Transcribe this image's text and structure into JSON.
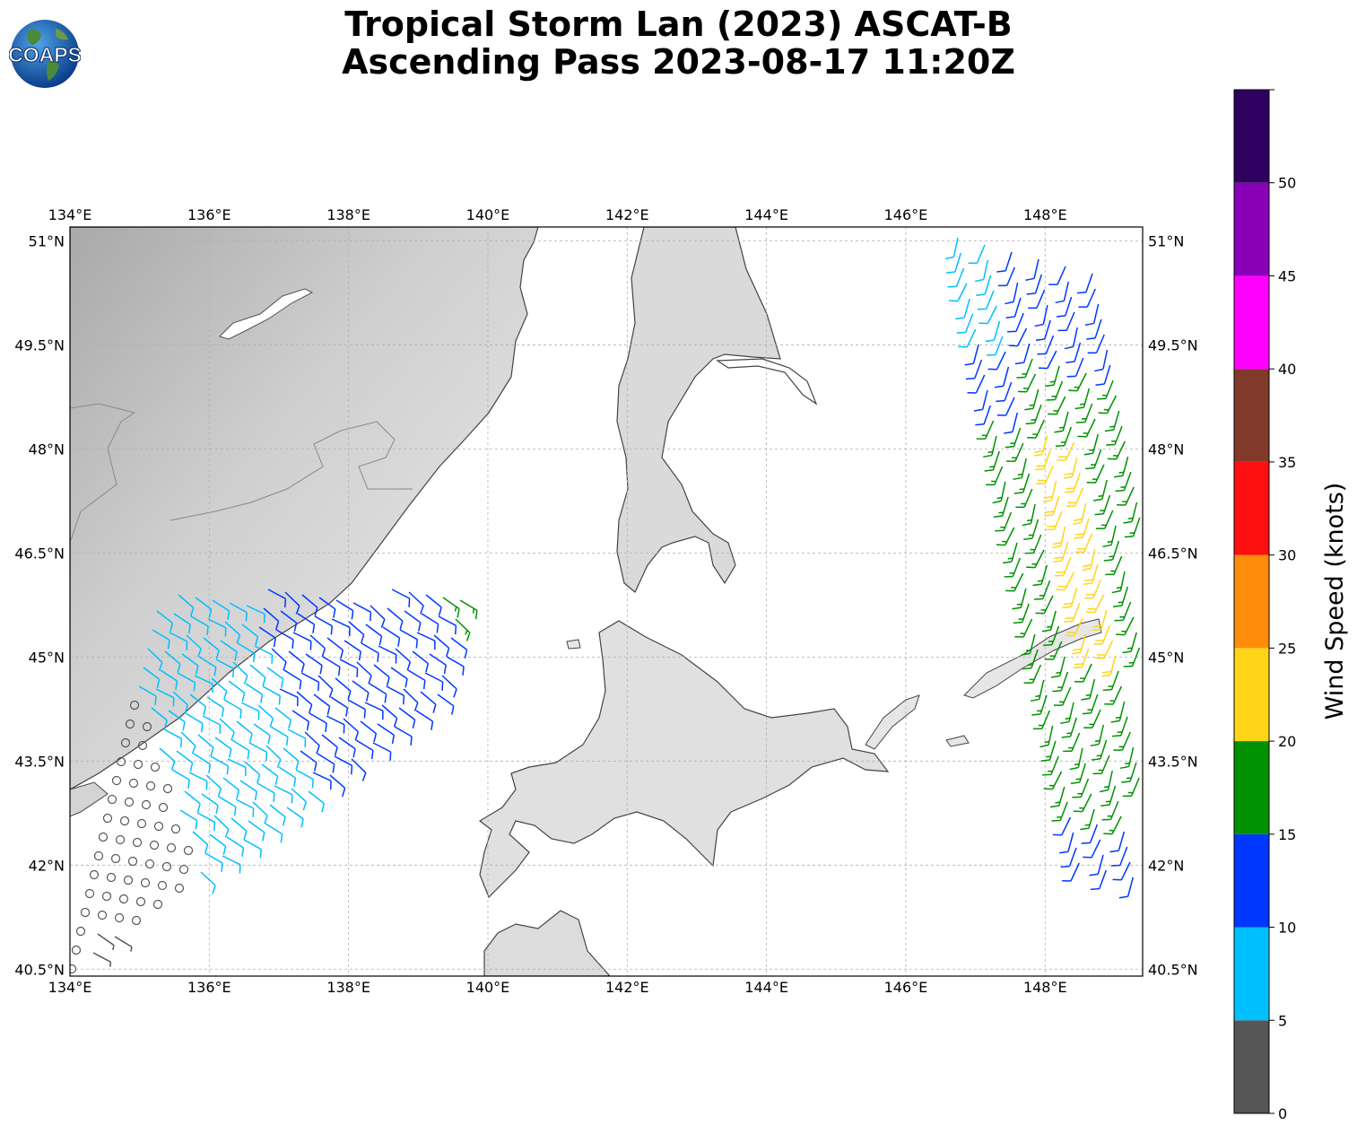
{
  "title": {
    "line1": "Tropical Storm Lan (2023) ASCAT-B",
    "line2": "Ascending Pass 2023-08-17 11:20Z"
  },
  "logo": {
    "text": "COAPS"
  },
  "map": {
    "lon_labels": [
      "134°E",
      "136°E",
      "138°E",
      "140°E",
      "142°E",
      "144°E",
      "146°E",
      "148°E"
    ],
    "lat_labels": [
      "51°N",
      "49.5°N",
      "48°N",
      "46.5°N",
      "45°N",
      "43.5°N",
      "42°N",
      "40.5°N"
    ],
    "lon_values": [
      134,
      136,
      138,
      140,
      142,
      144,
      146,
      148
    ],
    "lat_values": [
      51,
      49.5,
      48,
      46.5,
      45,
      43.5,
      42,
      40.5
    ],
    "extent": {
      "lon": [
        134,
        149.4
      ],
      "lat": [
        40.4,
        51.2
      ]
    },
    "gridlines": true
  },
  "colorbar": {
    "label": "Wind Speed (knots)",
    "ticks": [
      "0",
      "5",
      "10",
      "15",
      "20",
      "25",
      "30",
      "35",
      "40",
      "45",
      "50"
    ],
    "bins": [
      {
        "min": 0,
        "max": 5,
        "color": "#555555"
      },
      {
        "min": 5,
        "max": 10,
        "color": "#00bfff"
      },
      {
        "min": 10,
        "max": 15,
        "color": "#0037ff"
      },
      {
        "min": 15,
        "max": 20,
        "color": "#009100"
      },
      {
        "min": 20,
        "max": 25,
        "color": "#ffd517"
      },
      {
        "min": 25,
        "max": 30,
        "color": "#ff8c0a"
      },
      {
        "min": 30,
        "max": 35,
        "color": "#ff1010"
      },
      {
        "min": 35,
        "max": 40,
        "color": "#81392a"
      },
      {
        "min": 40,
        "max": 45,
        "color": "#ff00ff"
      },
      {
        "min": 45,
        "max": 50,
        "color": "#8a00b8"
      },
      {
        "min": 50,
        "max": 55,
        "color": "#2f0060"
      }
    ]
  }
}
